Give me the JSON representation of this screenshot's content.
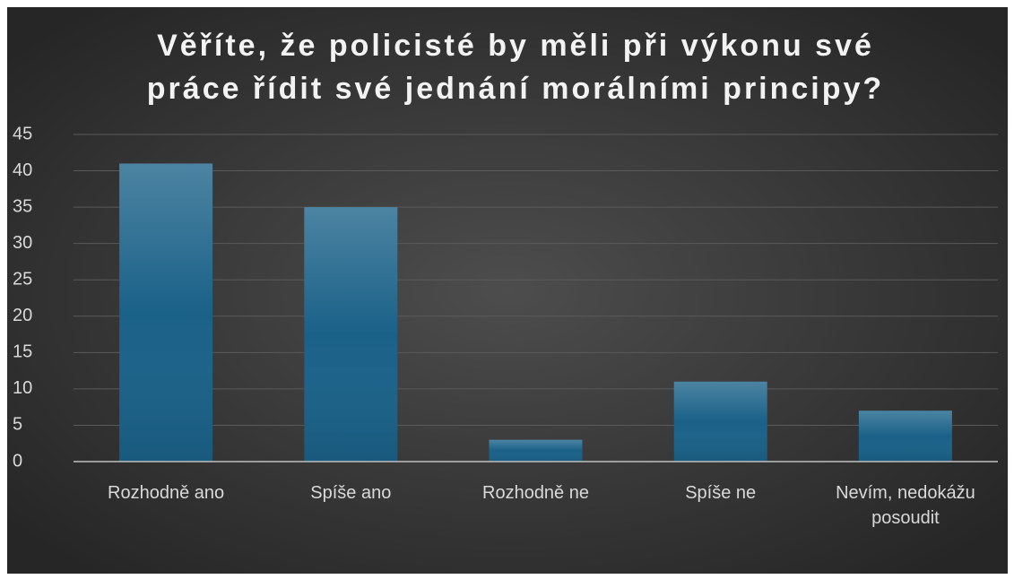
{
  "chart_data": {
    "type": "bar",
    "title": [
      "Věříte, že policisté by měli při výkonu své",
      "práce řídit své jednání morálními principy?"
    ],
    "categories": [
      "Rozhodně ano",
      "Spíše ano",
      "Rozhodně ne",
      "Spíše ne",
      "Nevím, nedokážu posoudit"
    ],
    "values": [
      41,
      35,
      3,
      11,
      7
    ],
    "color": "#1a6188",
    "ylim": [
      0,
      45
    ],
    "yticks": [
      0,
      5,
      10,
      15,
      20,
      25,
      30,
      35,
      40,
      45
    ],
    "grid": true
  }
}
